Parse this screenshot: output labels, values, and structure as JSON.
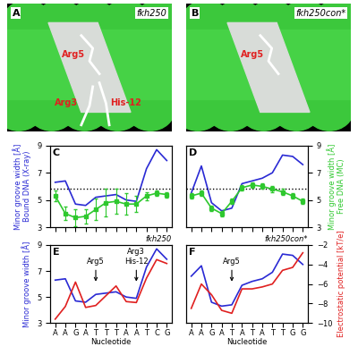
{
  "images": [
    {
      "panel": "A",
      "title": "fkh250",
      "labels": [
        "Arg5",
        "Arg3",
        "His-12"
      ]
    },
    {
      "panel": "B",
      "title": "fkh250con*",
      "labels": [
        "Arg5"
      ]
    }
  ],
  "chart_data": [
    {
      "type": "line",
      "panel": "C",
      "categories": [
        "A",
        "A",
        "G",
        "A",
        "T",
        "T",
        "T",
        "A",
        "A",
        "T",
        "C",
        "G"
      ],
      "ylabel": "Minor groove width [Å]\nBound DNA (X-ray)",
      "ylim": [
        3,
        9
      ],
      "yticks": [
        3,
        5,
        7,
        9
      ],
      "y2lim": [
        3,
        9
      ],
      "hline": 5.8,
      "tick_labels": "y",
      "series": [
        {
          "color": "#2a2ad4",
          "marker": "none",
          "values": [
            6.3,
            6.4,
            4.7,
            4.6,
            5.2,
            5.3,
            5.4,
            5.0,
            4.9,
            7.3,
            8.7,
            7.9
          ]
        },
        {
          "color": "#2ec82e",
          "marker": "s",
          "axis": "y2",
          "values": [
            5.3,
            4.0,
            3.7,
            3.8,
            4.3,
            4.8,
            4.9,
            4.7,
            4.7,
            5.3,
            5.5,
            5.4
          ],
          "errors": [
            0.4,
            0.5,
            0.6,
            0.5,
            0.8,
            1.0,
            0.9,
            0.8,
            0.6,
            0.3,
            0.2,
            0.2
          ]
        }
      ]
    },
    {
      "type": "line",
      "panel": "D",
      "categories": [
        "A",
        "A",
        "G",
        "A",
        "T",
        "A",
        "T",
        "A",
        "T",
        "T",
        "G",
        "G"
      ],
      "y2label": "Minor groove width [Å]\nFree DNA (MC)",
      "ylim": [
        3,
        9
      ],
      "y2lim": [
        3,
        9
      ],
      "y2ticks": [
        3,
        5,
        7,
        9
      ],
      "hline": 5.8,
      "tick_labels": "y",
      "series": [
        {
          "color": "#2a2ad4",
          "marker": "none",
          "values": [
            5.5,
            7.5,
            4.8,
            4.2,
            4.4,
            6.2,
            6.4,
            6.6,
            7.0,
            8.3,
            8.2,
            7.6
          ]
        },
        {
          "color": "#2ec82e",
          "marker": "s",
          "axis": "y2",
          "values": [
            5.3,
            5.5,
            4.4,
            4.0,
            4.9,
            5.9,
            6.1,
            6.0,
            5.8,
            5.6,
            5.3,
            4.9
          ],
          "errors": [
            0.2,
            0.2,
            0.2,
            0.2,
            0.2,
            0.2,
            0.2,
            0.2,
            0.2,
            0.2,
            0.2,
            0.2
          ]
        }
      ]
    },
    {
      "type": "line",
      "panel": "E",
      "title": "fkh250",
      "xlabel": "Nucleotide",
      "categories": [
        "A",
        "A",
        "G",
        "A",
        "T",
        "T",
        "T",
        "A",
        "A",
        "T",
        "C",
        "G"
      ],
      "ylabel": "Minor groove width [Å]",
      "ylim": [
        3,
        9
      ],
      "yticks": [
        3,
        5,
        7,
        9
      ],
      "y2lim": [
        -10,
        -2
      ],
      "annotations": [
        {
          "text": "Arg5",
          "index": 4
        },
        {
          "text": "Arg3\nHis-12",
          "index": 8
        }
      ],
      "series": [
        {
          "color": "#2a2ad4",
          "marker": "none",
          "values": [
            6.3,
            6.4,
            4.7,
            4.6,
            5.2,
            5.3,
            5.4,
            5.0,
            4.9,
            7.3,
            8.7,
            7.9
          ]
        },
        {
          "color": "#e02020",
          "marker": "none",
          "axis": "y2",
          "values": [
            -9.6,
            -8.3,
            -5.8,
            -8.4,
            -8.2,
            -7.2,
            -6.2,
            -7.8,
            -7.9,
            -5.4,
            -3.5,
            -3.9
          ]
        }
      ]
    },
    {
      "type": "line",
      "panel": "F",
      "title": "fkh250con*",
      "xlabel": "Nucleotide",
      "categories": [
        "A",
        "A",
        "G",
        "A",
        "T",
        "A",
        "T",
        "A",
        "T",
        "T",
        "G",
        "G"
      ],
      "y2label": "Electrostatic potential [kT/e]",
      "ylim": [
        3,
        9
      ],
      "y2lim": [
        -10,
        -2
      ],
      "y2ticks": [
        -10,
        -8,
        -6,
        -4,
        -2
      ],
      "annotations": [
        {
          "text": "Arg5",
          "index": 4
        }
      ],
      "series": [
        {
          "color": "#2a2ad4",
          "marker": "none",
          "values": [
            6.6,
            7.4,
            4.6,
            4.3,
            4.4,
            5.9,
            6.2,
            6.4,
            6.9,
            8.3,
            8.2,
            7.5
          ]
        },
        {
          "color": "#e02020",
          "marker": "none",
          "axis": "y2",
          "values": [
            -8.5,
            -6.0,
            -7.1,
            -8.7,
            -9.0,
            -6.5,
            -6.5,
            -6.3,
            -6.0,
            -4.6,
            -4.3,
            -2.8
          ]
        }
      ]
    }
  ]
}
